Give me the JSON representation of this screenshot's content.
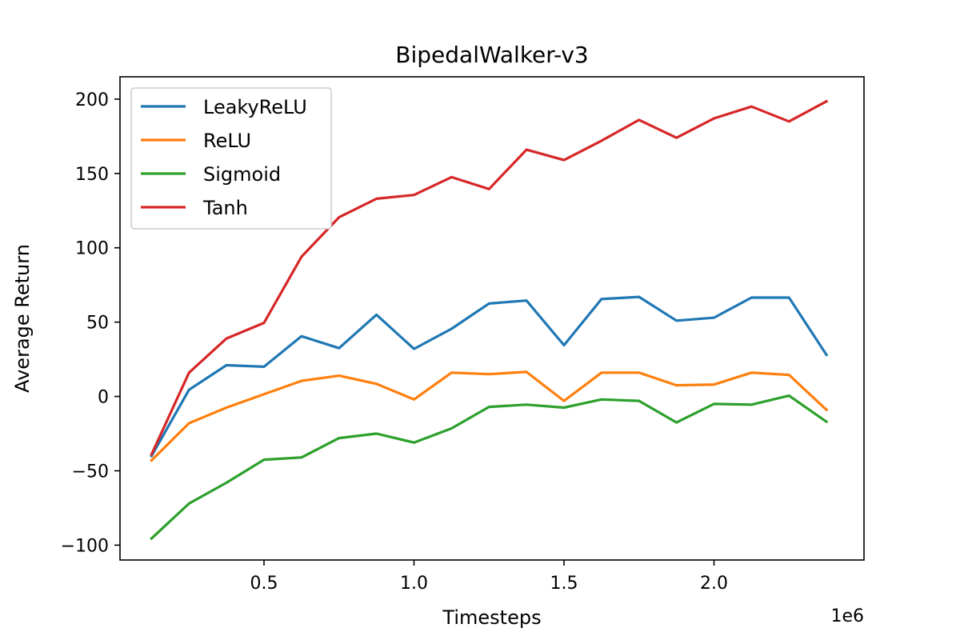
{
  "chart_data": {
    "type": "line",
    "title": "BipedalWalker-v3",
    "xlabel": "Timesteps",
    "ylabel": "Average Return",
    "x_offset_text": "1e6",
    "xlim": [
      0.02,
      2.5
    ],
    "ylim": [
      -110,
      215
    ],
    "xticks": [
      {
        "value": 0.5,
        "label": "0.5"
      },
      {
        "value": 1.0,
        "label": "1.0"
      },
      {
        "value": 1.5,
        "label": "1.5"
      },
      {
        "value": 2.0,
        "label": "2.0"
      }
    ],
    "yticks": [
      {
        "value": -100,
        "label": "−100"
      },
      {
        "value": -50,
        "label": "−50"
      },
      {
        "value": 0,
        "label": "0"
      },
      {
        "value": 50,
        "label": "50"
      },
      {
        "value": 100,
        "label": "100"
      },
      {
        "value": 150,
        "label": "150"
      },
      {
        "value": 200,
        "label": "200"
      }
    ],
    "grid": false,
    "legend_position": "upper-left",
    "x": [
      0.125,
      0.25,
      0.375,
      0.5,
      0.625,
      0.75,
      0.875,
      1.0,
      1.125,
      1.25,
      1.375,
      1.5,
      1.625,
      1.75,
      1.875,
      2.0,
      2.125,
      2.25,
      2.375
    ],
    "series": [
      {
        "name": "LeakyReLU",
        "color": "#1f77b4",
        "values": [
          -40,
          4.5,
          21,
          20,
          40.5,
          32.5,
          55,
          32,
          45.5,
          62.5,
          64.5,
          34.5,
          65.5,
          67,
          51,
          53,
          66.5,
          66.5,
          28
        ]
      },
      {
        "name": "ReLU",
        "color": "#ff7f0e",
        "values": [
          -43,
          -18,
          -7.5,
          1.5,
          10.5,
          14,
          8.5,
          -2,
          16,
          15,
          16.5,
          -3,
          16,
          16,
          7.5,
          8,
          16,
          14.5,
          -9
        ]
      },
      {
        "name": "Sigmoid",
        "color": "#2ca02c",
        "values": [
          -95.5,
          -72,
          -58,
          -42.5,
          -41,
          -28,
          -25,
          -31,
          -21.5,
          -7,
          -5.5,
          -7.5,
          -2,
          -3,
          -17.5,
          -5,
          -5.5,
          0.5,
          -17
        ]
      },
      {
        "name": "Tanh",
        "color": "#d62728",
        "values": [
          -39,
          16,
          39,
          49.5,
          94,
          120.5,
          133,
          135.5,
          147.5,
          139.5,
          166,
          159,
          172,
          186,
          174,
          187,
          195,
          185,
          198.5
        ]
      }
    ]
  }
}
